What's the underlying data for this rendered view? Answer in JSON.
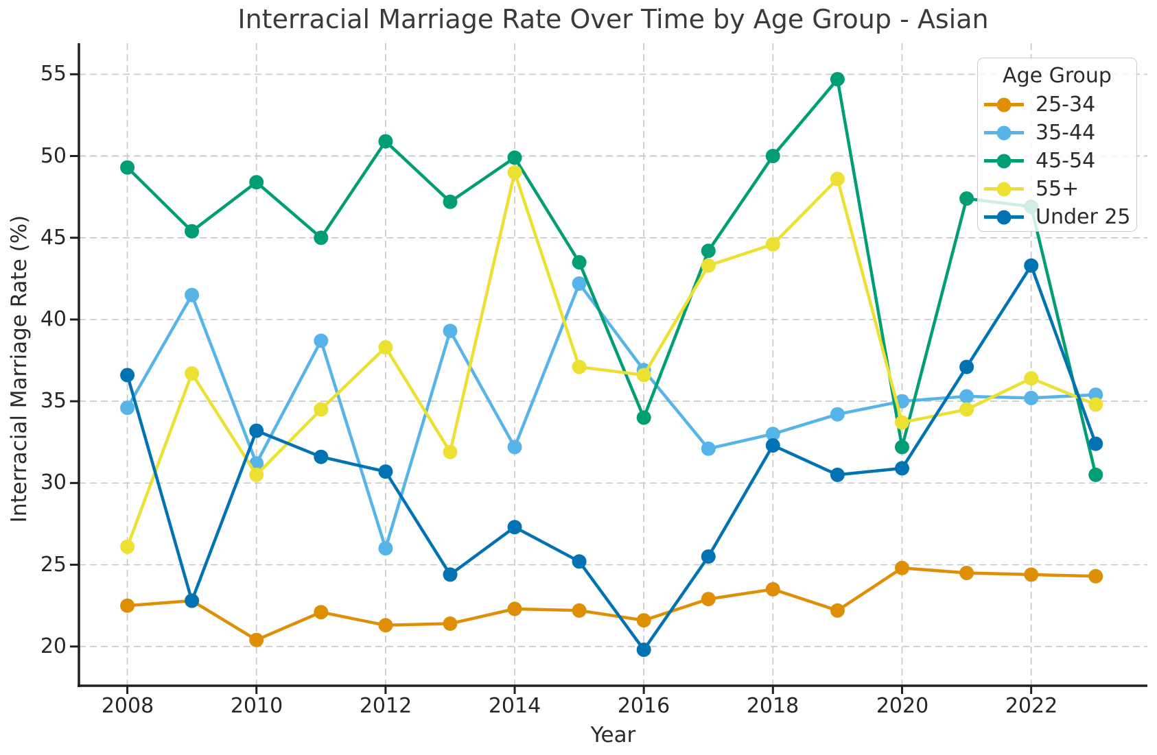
{
  "chart_data": {
    "type": "line",
    "title": "Interracial Marriage Rate Over Time by Age Group - Asian",
    "xlabel": "Year",
    "ylabel": "Interracial Marriage Rate (%)",
    "legend": {
      "title": "Age Group",
      "position": "upper right"
    },
    "grid": true,
    "grid_style": "dashed",
    "x": [
      2008,
      2009,
      2010,
      2011,
      2012,
      2013,
      2014,
      2015,
      2016,
      2017,
      2018,
      2019,
      2020,
      2021,
      2022,
      2023
    ],
    "series": [
      {
        "name": "25-34",
        "color": "#DE8F05",
        "values": [
          22.5,
          22.8,
          20.4,
          22.1,
          21.3,
          21.4,
          22.3,
          22.2,
          21.6,
          22.9,
          23.5,
          22.2,
          24.8,
          24.5,
          24.4,
          24.3
        ]
      },
      {
        "name": "35-44",
        "color": "#56B4E9",
        "values": [
          34.6,
          41.5,
          31.2,
          38.7,
          26.0,
          39.3,
          32.2,
          42.2,
          36.9,
          32.1,
          33.0,
          34.2,
          35.0,
          35.3,
          35.2,
          35.4
        ]
      },
      {
        "name": "45-54",
        "color": "#029E73",
        "values": [
          49.3,
          45.4,
          48.4,
          45.0,
          50.9,
          47.2,
          49.9,
          43.5,
          34.0,
          44.2,
          50.0,
          54.7,
          32.2,
          47.4,
          46.9,
          30.5
        ]
      },
      {
        "name": "55+",
        "color": "#ECE133",
        "values": [
          26.1,
          36.7,
          30.5,
          34.5,
          38.3,
          31.9,
          49.0,
          37.1,
          36.6,
          43.3,
          44.6,
          48.6,
          33.7,
          34.5,
          36.4,
          34.8
        ]
      },
      {
        "name": "Under 25",
        "color": "#0173B2",
        "values": [
          36.6,
          22.8,
          33.2,
          31.6,
          30.7,
          24.4,
          27.3,
          25.2,
          19.8,
          25.5,
          32.3,
          30.5,
          30.9,
          37.1,
          43.3,
          32.4
        ]
      }
    ],
    "xticks": [
      2008,
      2010,
      2012,
      2014,
      2016,
      2018,
      2020,
      2022
    ],
    "yticks": [
      20,
      25,
      30,
      35,
      40,
      45,
      50,
      55
    ],
    "xlim": [
      2007.25,
      2023.8
    ],
    "ylim": [
      17.6,
      56.9
    ],
    "colors": {
      "spine": "#1f1f1f",
      "gridline": "#c9c9c9",
      "tick_text": "#262626",
      "title_text": "#3a3a3a"
    }
  }
}
